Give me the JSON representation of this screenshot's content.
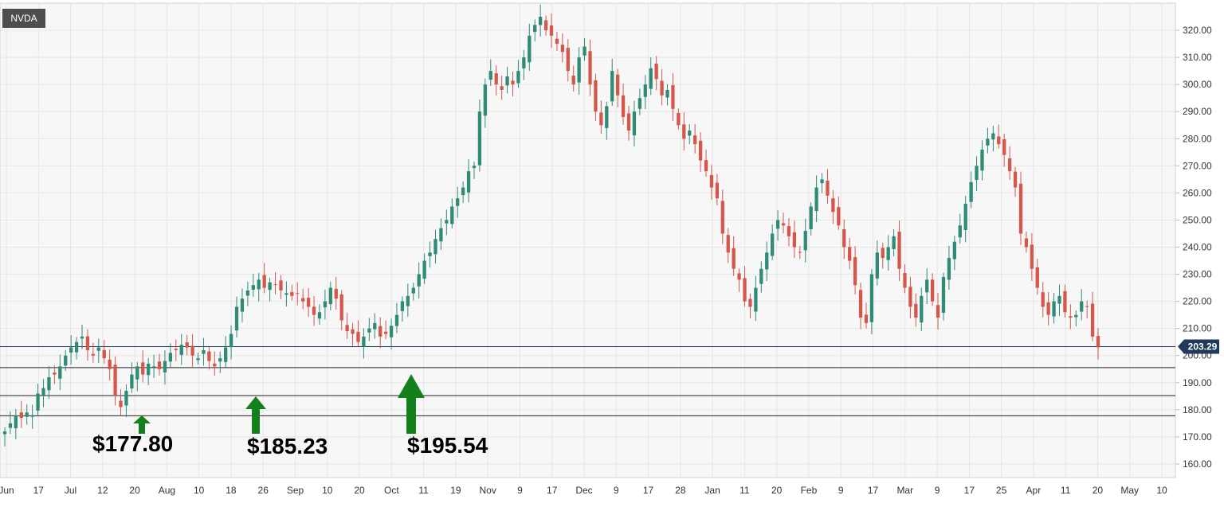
{
  "ticker": "NVDA",
  "colors": {
    "up": "#2f8a76",
    "down": "#d4574b",
    "grid": "#e6e6e6",
    "arrow": "#13801c",
    "support_line": "#222222",
    "last_price_line": "#1f3a5a",
    "last_price_badge": "#1f3a5a"
  },
  "chart_data": {
    "type": "candlestick",
    "symbol": "NVDA",
    "ylim": [
      155,
      330
    ],
    "y_axis_position": "right",
    "y_ticks": [
      "160.00",
      "170.00",
      "180.00",
      "190.00",
      "200.00",
      "210.00",
      "220.00",
      "230.00",
      "240.00",
      "250.00",
      "260.00",
      "270.00",
      "280.00",
      "290.00",
      "300.00",
      "310.00",
      "320.00"
    ],
    "x_ticks": [
      "Jun",
      "17",
      "Jul",
      "12",
      "20",
      "Aug",
      "10",
      "18",
      "26",
      "Sep",
      "10",
      "20",
      "Oct",
      "11",
      "19",
      "Nov",
      "9",
      "17",
      "Dec",
      "9",
      "17",
      "28",
      "Jan",
      "11",
      "20",
      "Feb",
      "9",
      "17",
      "Mar",
      "9",
      "17",
      "25",
      "Apr",
      "11",
      "20",
      "May",
      "10"
    ],
    "grid": true,
    "last_price": 203.29,
    "last_price_label": "203.29",
    "support_levels": [
      {
        "value": 177.8,
        "label": "$177.80"
      },
      {
        "value": 185.23,
        "label": "$185.23"
      },
      {
        "value": 195.54,
        "label": "$195.54"
      }
    ],
    "closes": [
      172,
      175,
      178,
      177,
      179,
      178,
      186,
      188,
      192,
      193,
      196,
      200,
      203,
      205,
      207,
      202,
      200,
      203,
      199,
      195,
      185,
      181,
      187,
      193,
      196,
      193,
      197,
      196,
      195,
      198,
      201,
      202,
      204,
      203,
      200,
      199,
      202,
      198,
      196,
      199,
      203,
      208,
      218,
      221,
      224,
      226,
      228,
      225,
      227,
      226,
      224,
      223,
      222,
      223,
      220,
      218,
      215,
      216,
      220,
      225,
      221,
      213,
      209,
      208,
      205,
      207,
      210,
      212,
      207,
      208,
      211,
      215,
      220,
      222,
      225,
      230,
      235,
      238,
      243,
      247,
      250,
      255,
      258,
      262,
      268,
      270,
      290,
      300,
      305,
      300,
      298,
      303,
      300,
      305,
      310,
      318,
      322,
      325,
      320,
      318,
      315,
      312,
      305,
      300,
      310,
      314,
      300,
      290,
      285,
      292,
      305,
      296,
      288,
      283,
      290,
      295,
      300,
      306,
      302,
      296,
      298,
      291,
      285,
      280,
      283,
      278,
      272,
      268,
      262,
      258,
      245,
      238,
      232,
      228,
      220,
      218,
      225,
      232,
      238,
      245,
      250,
      248,
      244,
      240,
      238,
      246,
      255,
      262,
      265,
      259,
      253,
      248,
      240,
      235,
      226,
      214,
      212,
      230,
      238,
      236,
      240,
      244,
      232,
      225,
      218,
      214,
      222,
      228,
      220,
      214,
      229,
      236,
      242,
      248,
      256,
      264,
      270,
      276,
      280,
      282,
      278,
      274,
      268,
      262,
      245,
      240,
      232,
      225,
      218,
      215,
      220,
      222,
      216,
      214,
      215,
      220,
      218,
      207,
      203
    ],
    "candles": []
  }
}
